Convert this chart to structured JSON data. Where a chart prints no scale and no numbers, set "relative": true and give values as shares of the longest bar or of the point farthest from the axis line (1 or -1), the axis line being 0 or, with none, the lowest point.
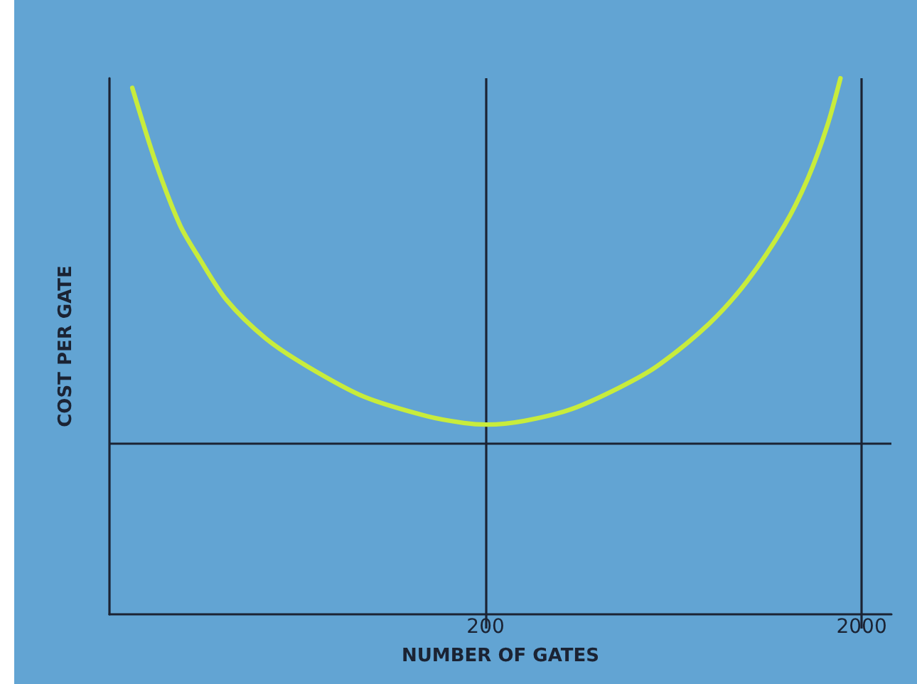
{
  "chart_data": {
    "type": "line",
    "xlabel": "NUMBER OF GATES",
    "ylabel": "COST PER GATE",
    "relative": true,
    "log": "x",
    "x": [
      23,
      26.6,
      30.8,
      34.6,
      41,
      52,
      67,
      95,
      139,
      175,
      202,
      254,
      339,
      454,
      572,
      786,
      991,
      1248,
      1443,
      1620,
      1757
    ],
    "xlim": [
      20,
      2400
    ],
    "xticks": [
      200,
      2000
    ],
    "series": [
      {
        "color": "#c8ec3c",
        "values": [
          0.982,
          0.841,
          0.726,
          0.665,
          0.586,
          0.515,
          0.463,
          0.406,
          0.37,
          0.357,
          0.354,
          0.361,
          0.383,
          0.423,
          0.463,
          0.542,
          0.621,
          0.726,
          0.815,
          0.911,
          1.0
        ]
      }
    ],
    "ref_lines": [
      {
        "axis": "x",
        "value": 200
      },
      {
        "axis": "x",
        "value": 2000
      },
      {
        "axis": "y",
        "value": 0.317
      }
    ]
  }
}
